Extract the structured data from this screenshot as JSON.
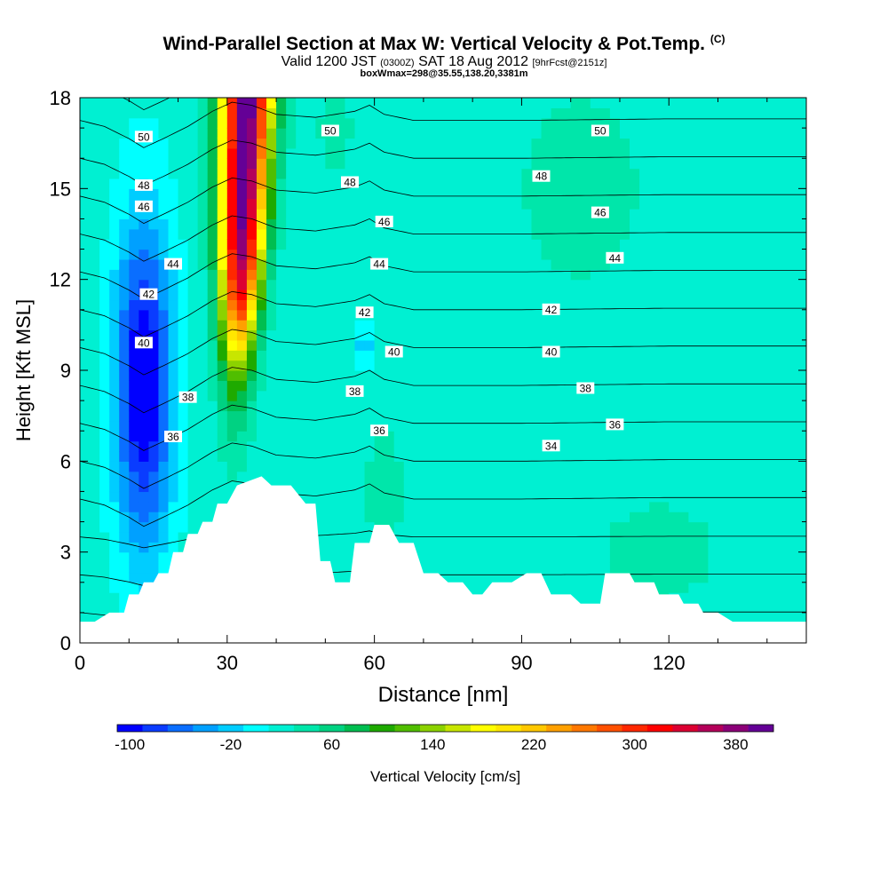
{
  "header": {
    "title": "Wind-Parallel Section at Max W: Vertical Velocity & Pot.Temp.",
    "title_mark": "(C)",
    "valid_prefix": "Valid 1200 JST",
    "valid_utc": "(0300Z)",
    "valid_date": "SAT 18 Aug 2012",
    "forecast_info": "[9hrFcst@2151z]",
    "box_info": "boxWmax=298@35.55,138.20,3381m"
  },
  "chart_data": {
    "type": "heatmap",
    "xlabel": "Distance [nm]",
    "ylabel": "Height [Kft MSL]",
    "xlim": [
      0,
      148
    ],
    "ylim": [
      0,
      18
    ],
    "x_ticks": [
      0,
      30,
      60,
      90,
      120
    ],
    "y_ticks": [
      0,
      3,
      6,
      9,
      12,
      15,
      18
    ],
    "colorbar": {
      "label": "Vertical Velocity [cm/s]",
      "min": -100,
      "step": 20,
      "tick_labels": [
        -100,
        -20,
        60,
        140,
        220,
        300,
        380
      ],
      "colors": [
        "#0000ff",
        "#0a3cff",
        "#0a6eff",
        "#00a0ff",
        "#00cdff",
        "#00ffff",
        "#00f0d2",
        "#00e6aa",
        "#00d282",
        "#00be50",
        "#1eaa00",
        "#50be00",
        "#8cd200",
        "#c8e600",
        "#ffff00",
        "#ffe600",
        "#ffc800",
        "#ffa000",
        "#ff7800",
        "#ff5000",
        "#ff2800",
        "#ff0000",
        "#dc0032",
        "#b4005a",
        "#8c0078",
        "#640096"
      ]
    },
    "vertical_velocity_features": [
      {
        "name": "updraft",
        "x": 33,
        "z_from": 6.5,
        "z_to": 18,
        "peak": 390
      },
      {
        "name": "downdraft",
        "x": 13,
        "z_from": 3,
        "z_to": 14,
        "peak": -100
      },
      {
        "name": "downdraft",
        "x": 58,
        "z_from": 9,
        "z_to": 10.5,
        "peak": -20
      }
    ],
    "terrain_profile": {
      "x": [
        0,
        3,
        6,
        9,
        10,
        12,
        13,
        15,
        16,
        18,
        19,
        21,
        22,
        24,
        25,
        27,
        28,
        30,
        32,
        37,
        39,
        43,
        46,
        48,
        49,
        51,
        52,
        55,
        56,
        59,
        60,
        63,
        65,
        68,
        70,
        73,
        75,
        78,
        80,
        82,
        84,
        86,
        88,
        91,
        92,
        94,
        96,
        100,
        102,
        106,
        107,
        112,
        113,
        117,
        118,
        122,
        123,
        126,
        127,
        129,
        130,
        133,
        134,
        138,
        140,
        148
      ],
      "z": [
        0.7,
        0.7,
        1.0,
        1.0,
        1.6,
        1.6,
        2.0,
        2.0,
        2.3,
        2.3,
        3.0,
        3.0,
        3.6,
        3.6,
        4.0,
        4.0,
        4.6,
        4.6,
        5.2,
        5.5,
        5.2,
        5.2,
        4.6,
        4.6,
        2.7,
        2.7,
        2.0,
        2.0,
        3.3,
        3.3,
        3.9,
        3.9,
        3.3,
        3.3,
        2.3,
        2.3,
        2.0,
        2.0,
        1.6,
        1.6,
        2.0,
        2.0,
        2.0,
        2.3,
        2.3,
        2.3,
        1.6,
        1.6,
        1.3,
        1.3,
        2.3,
        2.3,
        2.0,
        2.0,
        1.6,
        1.6,
        1.3,
        1.3,
        1.0,
        1.0,
        1.0,
        0.7,
        0.7,
        0.7,
        0.7,
        0.7
      ]
    },
    "isentropes": [
      {
        "theta": 34,
        "label_at": [
          [
            96,
            6.5
          ]
        ]
      },
      {
        "theta": 36,
        "label_at": [
          [
            19,
            6.8
          ],
          [
            61,
            7.0
          ],
          [
            109,
            7.2
          ]
        ]
      },
      {
        "theta": 38,
        "label_at": [
          [
            22,
            8.1
          ],
          [
            56,
            8.3
          ],
          [
            103,
            8.4
          ]
        ]
      },
      {
        "theta": 40,
        "label_at": [
          [
            13,
            9.9
          ],
          [
            64,
            9.6
          ],
          [
            96,
            9.6
          ]
        ]
      },
      {
        "theta": 42,
        "label_at": [
          [
            14,
            11.5
          ],
          [
            58,
            10.9
          ],
          [
            96,
            11.0
          ]
        ]
      },
      {
        "theta": 44,
        "label_at": [
          [
            19,
            12.5
          ],
          [
            61,
            12.5
          ],
          [
            109,
            12.7
          ]
        ]
      },
      {
        "theta": 46,
        "label_at": [
          [
            13,
            14.4
          ],
          [
            62,
            13.9
          ],
          [
            106,
            14.2
          ]
        ]
      },
      {
        "theta": 48,
        "label_at": [
          [
            13,
            15.1
          ],
          [
            55,
            15.2
          ],
          [
            94,
            15.4
          ]
        ]
      },
      {
        "theta": 50,
        "label_at": [
          [
            13,
            16.7
          ],
          [
            51,
            16.9
          ],
          [
            106,
            16.9
          ]
        ]
      }
    ],
    "isentrope_offsets": [
      {
        "x": 0,
        "dz": 0
      },
      {
        "x": 5,
        "dz": -0.2
      },
      {
        "x": 10,
        "dz": -0.6
      },
      {
        "x": 13,
        "dz": -0.9
      },
      {
        "x": 17,
        "dz": -0.6
      },
      {
        "x": 22,
        "dz": -0.2
      },
      {
        "x": 27,
        "dz": 0.3
      },
      {
        "x": 31,
        "dz": 0.6
      },
      {
        "x": 35,
        "dz": 0.5
      },
      {
        "x": 40,
        "dz": 0.2
      },
      {
        "x": 48,
        "dz": 0.1
      },
      {
        "x": 56,
        "dz": 0.3
      },
      {
        "x": 59,
        "dz": 0.5
      },
      {
        "x": 62,
        "dz": 0.2
      },
      {
        "x": 68,
        "dz": 0.0
      },
      {
        "x": 90,
        "dz": 0.0
      },
      {
        "x": 120,
        "dz": 0.05
      },
      {
        "x": 148,
        "dz": 0.05
      }
    ]
  }
}
